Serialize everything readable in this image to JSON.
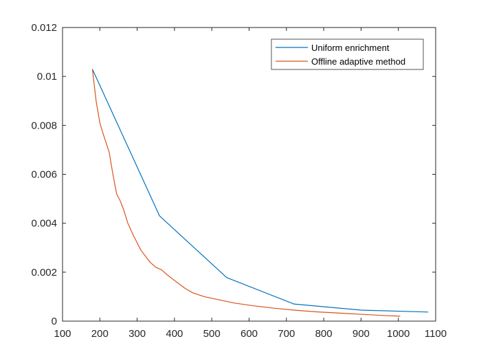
{
  "chart_data": {
    "type": "line",
    "title": "",
    "xlabel": "",
    "ylabel": "",
    "xlim": [
      100,
      1100
    ],
    "ylim": [
      0,
      0.012
    ],
    "x_ticks": [
      100,
      200,
      300,
      400,
      500,
      600,
      700,
      800,
      900,
      1000,
      1100
    ],
    "x_tick_labels": [
      "100",
      "200",
      "300",
      "400",
      "500",
      "600",
      "700",
      "800",
      "900",
      "1000",
      "1100"
    ],
    "y_ticks": [
      0,
      0.002,
      0.004,
      0.006,
      0.008,
      0.01,
      0.012
    ],
    "y_tick_labels": [
      "0",
      "0.002",
      "0.004",
      "0.006",
      "0.008",
      "0.01",
      "0.012"
    ],
    "grid": false,
    "legend_position": "top-right",
    "series": [
      {
        "name": "Uniform enrichment",
        "color": "#0072BD",
        "x": [
          180,
          360,
          540,
          720,
          900,
          1080
        ],
        "y": [
          0.0103,
          0.0043,
          0.00178,
          0.0007,
          0.00045,
          0.00037
        ]
      },
      {
        "name": "Offline adaptive method",
        "color": "#D95319",
        "x": [
          180,
          190,
          200,
          210,
          225,
          235,
          245,
          255,
          265,
          275,
          290,
          300,
          310,
          325,
          335,
          350,
          365,
          380,
          395,
          410,
          430,
          450,
          480,
          520,
          560,
          610,
          660,
          720,
          780,
          840,
          900,
          960,
          1005
        ],
        "y": [
          0.0103,
          0.009,
          0.0081,
          0.0076,
          0.0069,
          0.006,
          0.0052,
          0.0049,
          0.0045,
          0.004,
          0.0035,
          0.0032,
          0.0029,
          0.0026,
          0.0024,
          0.0022,
          0.0021,
          0.0019,
          0.00172,
          0.00155,
          0.00132,
          0.00115,
          0.001,
          0.00087,
          0.00074,
          0.00063,
          0.00054,
          0.00045,
          0.00038,
          0.00033,
          0.00028,
          0.00023,
          0.0002
        ]
      }
    ]
  }
}
